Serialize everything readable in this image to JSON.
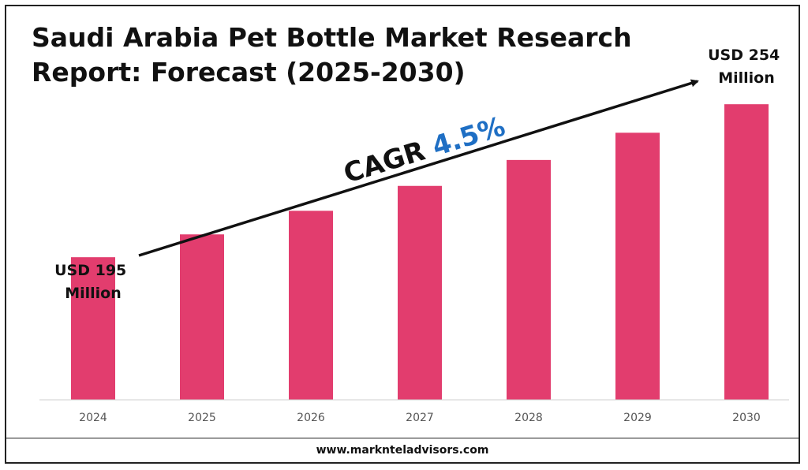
{
  "title": "Saudi Arabia Pet Bottle Market Research Report: Forecast (2025-2030)",
  "footer": "www.marknteladvisors.com",
  "colors": {
    "bar": "#e23d6e",
    "cagr_value": "#1f6fc4",
    "text": "#111111",
    "axis_text": "#555555"
  },
  "chart_data": {
    "type": "bar",
    "categories": [
      "2024",
      "2025",
      "2026",
      "2027",
      "2028",
      "2029",
      "2030"
    ],
    "values": [
      195,
      203.8,
      212.9,
      222.5,
      232.5,
      243.0,
      254
    ],
    "title": "Saudi Arabia Pet Bottle Market Research Report: Forecast (2025-2030)",
    "xlabel": "",
    "ylabel": "",
    "ylim": [
      140,
      265
    ],
    "grid": false,
    "legend": "none",
    "annotations": {
      "start_label": [
        "USD 195",
        "Million"
      ],
      "end_label": [
        "USD 254",
        "Million"
      ],
      "cagr_prefix": "CAGR ",
      "cagr_value": "4.5%"
    }
  }
}
